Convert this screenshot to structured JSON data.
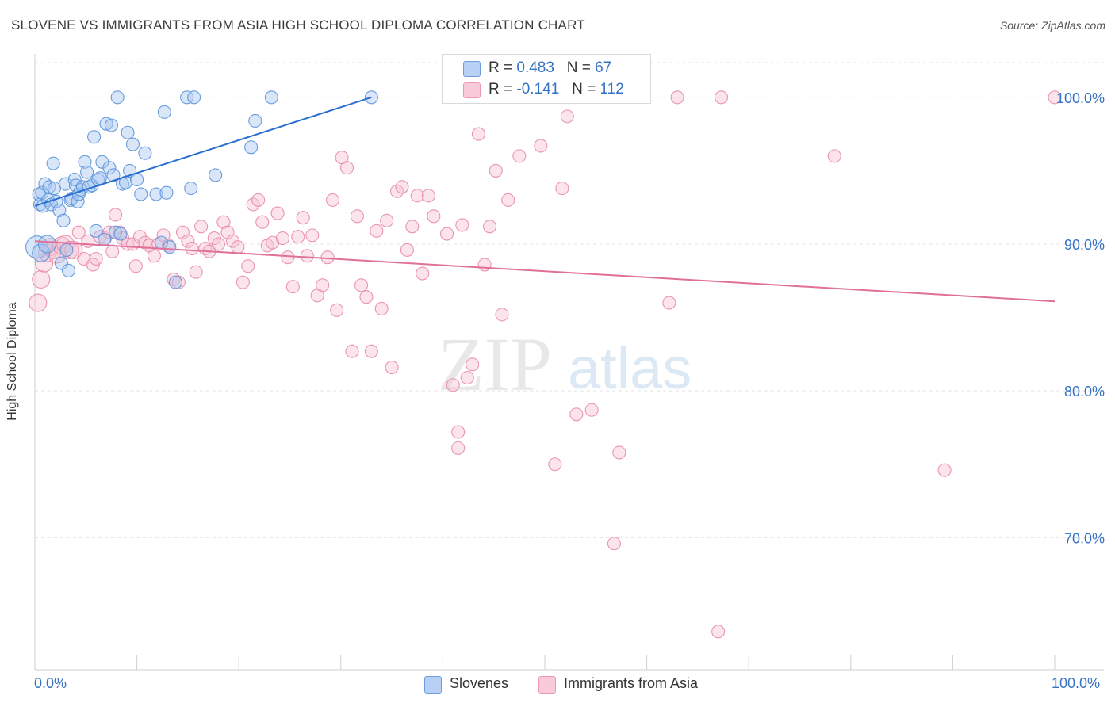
{
  "title": "SLOVENE VS IMMIGRANTS FROM ASIA HIGH SCHOOL DIPLOMA CORRELATION CHART",
  "source": "Source: ZipAtlas.com",
  "watermark": {
    "zip": "ZIP",
    "atlas": "atlas"
  },
  "colors": {
    "slovenes_fill": "#a9c7f0",
    "slovenes_stroke": "#5b92dc",
    "slovenes_line": "#2a6fd1",
    "asia_fill": "#f7c3d3",
    "asia_stroke": "#e98aaa",
    "asia_line": "#e0709a",
    "tick_text": "#3572c6",
    "grid": "#e3e3e3"
  },
  "legend": {
    "r_label": "R =",
    "n_label": "N =",
    "rows": [
      {
        "r": "0.483",
        "n": "67"
      },
      {
        "r": "-0.141",
        "n": "112"
      }
    ]
  },
  "bottom_legend": [
    "Slovenes",
    "Immigrants from Asia"
  ],
  "chart_data": {
    "type": "scatter",
    "title": "SLOVENE VS IMMIGRANTS FROM ASIA HIGH SCHOOL DIPLOMA CORRELATION CHART",
    "xlabel": "",
    "ylabel": "High School Diploma",
    "xlim": [
      0,
      100
    ],
    "ylim": [
      61,
      103.5
    ],
    "x_tick_labels": [
      "0.0%",
      "100.0%"
    ],
    "y_ticks": [
      {
        "value": 100,
        "label": "100.0%"
      },
      {
        "value": 90,
        "label": "90.0%"
      },
      {
        "value": 80,
        "label": "80.0%"
      },
      {
        "value": 70,
        "label": "70.0%"
      }
    ],
    "grid": true,
    "legend_position": "top-center",
    "series": [
      {
        "name": "Slovenes",
        "r": 0.483,
        "n": 67,
        "trend": {
          "x": [
            0.0,
            33.0
          ],
          "y": [
            92.6,
            100.0
          ]
        },
        "points": [
          [
            0.2,
            89.8,
            3
          ],
          [
            0.4,
            93.4,
            1
          ],
          [
            0.5,
            92.7,
            1
          ],
          [
            0.7,
            93.5,
            1
          ],
          [
            0.8,
            92.6,
            1
          ],
          [
            1.0,
            94.1,
            1
          ],
          [
            1.3,
            93.0,
            1
          ],
          [
            1.4,
            93.9,
            1
          ],
          [
            1.6,
            92.7,
            1
          ],
          [
            1.8,
            95.5,
            1
          ],
          [
            1.9,
            93.8,
            1
          ],
          [
            2.1,
            92.9,
            1
          ],
          [
            2.4,
            92.3,
            1
          ],
          [
            2.6,
            88.7,
            1
          ],
          [
            2.8,
            91.6,
            1
          ],
          [
            3.0,
            94.1,
            1
          ],
          [
            3.1,
            89.6,
            1
          ],
          [
            3.3,
            88.2,
            1
          ],
          [
            3.5,
            93.0,
            1
          ],
          [
            3.6,
            93.1,
            1
          ],
          [
            3.9,
            94.4,
            1
          ],
          [
            4.0,
            94.0,
            1
          ],
          [
            4.2,
            92.9,
            1
          ],
          [
            4.3,
            93.4,
            1
          ],
          [
            4.5,
            93.7,
            1
          ],
          [
            4.7,
            93.9,
            1
          ],
          [
            4.9,
            95.6,
            1
          ],
          [
            5.1,
            94.9,
            1
          ],
          [
            5.3,
            93.9,
            1
          ],
          [
            5.6,
            94.0,
            1
          ],
          [
            5.8,
            97.3,
            1
          ],
          [
            6.0,
            90.9,
            1
          ],
          [
            6.2,
            94.4,
            1
          ],
          [
            6.4,
            94.5,
            1
          ],
          [
            6.6,
            95.6,
            1
          ],
          [
            6.8,
            90.3,
            1
          ],
          [
            7.0,
            98.2,
            1
          ],
          [
            7.3,
            95.2,
            1
          ],
          [
            7.5,
            98.1,
            1
          ],
          [
            7.7,
            94.7,
            1
          ],
          [
            7.9,
            90.8,
            1
          ],
          [
            8.1,
            100.0,
            1
          ],
          [
            8.4,
            90.7,
            1
          ],
          [
            8.6,
            94.1,
            1
          ],
          [
            8.9,
            94.2,
            1
          ],
          [
            9.1,
            97.6,
            1
          ],
          [
            9.3,
            95.0,
            1
          ],
          [
            9.6,
            96.8,
            1
          ],
          [
            10.0,
            94.4,
            1
          ],
          [
            10.4,
            93.4,
            1
          ],
          [
            10.8,
            96.2,
            1
          ],
          [
            11.9,
            93.4,
            1
          ],
          [
            12.4,
            90.1,
            1
          ],
          [
            12.7,
            99.0,
            1
          ],
          [
            12.9,
            93.5,
            1
          ],
          [
            13.2,
            89.8,
            1
          ],
          [
            13.8,
            87.4,
            1
          ],
          [
            14.9,
            100.0,
            1
          ],
          [
            15.3,
            93.8,
            1
          ],
          [
            15.6,
            100.0,
            1
          ],
          [
            17.7,
            94.7,
            1
          ],
          [
            21.2,
            96.6,
            1
          ],
          [
            21.6,
            98.4,
            1
          ],
          [
            23.2,
            100.0,
            1
          ],
          [
            33.0,
            100.0,
            1
          ],
          [
            0.6,
            89.4,
            2
          ],
          [
            1.2,
            90.0,
            2
          ]
        ]
      },
      {
        "name": "Immigrants from Asia",
        "r": -0.141,
        "n": 112,
        "trend": {
          "x": [
            0.0,
            100.0
          ],
          "y": [
            90.2,
            86.1
          ]
        },
        "points": [
          [
            0.3,
            86.0,
            2
          ],
          [
            0.6,
            87.6,
            2
          ],
          [
            0.9,
            88.7,
            2
          ],
          [
            1.2,
            89.4,
            2
          ],
          [
            1.5,
            89.8,
            2
          ],
          [
            1.8,
            89.6,
            2
          ],
          [
            2.2,
            89.3,
            2
          ],
          [
            2.6,
            89.9,
            2
          ],
          [
            3.0,
            90.0,
            2
          ],
          [
            3.4,
            89.6,
            2
          ],
          [
            3.8,
            89.6,
            2
          ],
          [
            4.3,
            90.8,
            1
          ],
          [
            4.8,
            89.0,
            1
          ],
          [
            5.2,
            90.2,
            1
          ],
          [
            5.7,
            88.6,
            1
          ],
          [
            6.0,
            89.0,
            1
          ],
          [
            6.4,
            90.5,
            1
          ],
          [
            6.9,
            90.4,
            1
          ],
          [
            7.3,
            90.8,
            1
          ],
          [
            7.6,
            89.5,
            1
          ],
          [
            7.9,
            92.0,
            1
          ],
          [
            8.3,
            90.8,
            1
          ],
          [
            8.6,
            90.4,
            1
          ],
          [
            9.1,
            90.0,
            1
          ],
          [
            9.6,
            90.0,
            1
          ],
          [
            9.9,
            88.5,
            1
          ],
          [
            10.3,
            90.5,
            1
          ],
          [
            10.8,
            90.1,
            1
          ],
          [
            11.2,
            89.9,
            1
          ],
          [
            11.7,
            89.2,
            1
          ],
          [
            12.1,
            90.0,
            1
          ],
          [
            12.6,
            90.6,
            1
          ],
          [
            13.1,
            89.9,
            1
          ],
          [
            13.6,
            87.6,
            1
          ],
          [
            14.1,
            87.4,
            1
          ],
          [
            14.5,
            90.8,
            1
          ],
          [
            15.0,
            90.2,
            1
          ],
          [
            15.4,
            89.7,
            1
          ],
          [
            15.8,
            88.1,
            1
          ],
          [
            16.3,
            91.2,
            1
          ],
          [
            16.7,
            89.7,
            1
          ],
          [
            17.1,
            89.5,
            1
          ],
          [
            17.6,
            90.4,
            1
          ],
          [
            18.0,
            90.0,
            1
          ],
          [
            18.5,
            91.5,
            1
          ],
          [
            18.9,
            90.8,
            1
          ],
          [
            19.4,
            90.2,
            1
          ],
          [
            19.9,
            89.8,
            1
          ],
          [
            20.4,
            87.4,
            1
          ],
          [
            20.9,
            88.5,
            1
          ],
          [
            21.4,
            92.7,
            1
          ],
          [
            21.9,
            93.0,
            1
          ],
          [
            22.3,
            91.5,
            1
          ],
          [
            22.8,
            89.9,
            1
          ],
          [
            23.3,
            90.1,
            1
          ],
          [
            23.8,
            92.1,
            1
          ],
          [
            24.3,
            90.4,
            1
          ],
          [
            24.8,
            89.1,
            1
          ],
          [
            25.3,
            87.1,
            1
          ],
          [
            25.8,
            90.5,
            1
          ],
          [
            26.3,
            91.8,
            1
          ],
          [
            26.7,
            89.2,
            1
          ],
          [
            27.2,
            90.6,
            1
          ],
          [
            27.7,
            86.5,
            1
          ],
          [
            28.2,
            87.2,
            1
          ],
          [
            28.7,
            89.1,
            1
          ],
          [
            29.2,
            93.0,
            1
          ],
          [
            29.6,
            85.5,
            1
          ],
          [
            30.1,
            95.9,
            1
          ],
          [
            30.6,
            95.2,
            1
          ],
          [
            31.1,
            82.7,
            1
          ],
          [
            31.6,
            91.9,
            1
          ],
          [
            32.0,
            87.2,
            1
          ],
          [
            32.5,
            86.4,
            1
          ],
          [
            33.0,
            82.7,
            1
          ],
          [
            33.5,
            90.9,
            1
          ],
          [
            34.0,
            85.6,
            1
          ],
          [
            34.5,
            91.6,
            1
          ],
          [
            35.0,
            81.6,
            1
          ],
          [
            35.5,
            93.6,
            1
          ],
          [
            36.0,
            93.9,
            1
          ],
          [
            36.5,
            89.6,
            1
          ],
          [
            37.0,
            91.2,
            1
          ],
          [
            37.5,
            93.3,
            1
          ],
          [
            38.0,
            88.0,
            1
          ],
          [
            38.6,
            93.3,
            1
          ],
          [
            39.1,
            91.9,
            1
          ],
          [
            40.4,
            90.7,
            1
          ],
          [
            41.0,
            80.4,
            1
          ],
          [
            41.5,
            77.2,
            1
          ],
          [
            41.9,
            91.3,
            1
          ],
          [
            42.4,
            80.9,
            1
          ],
          [
            42.9,
            81.8,
            1
          ],
          [
            43.5,
            97.5,
            1
          ],
          [
            44.1,
            88.6,
            1
          ],
          [
            44.6,
            91.2,
            1
          ],
          [
            45.2,
            95.0,
            1
          ],
          [
            45.8,
            85.2,
            1
          ],
          [
            46.4,
            93.0,
            1
          ],
          [
            47.5,
            96.0,
            1
          ],
          [
            49.6,
            96.7,
            1
          ],
          [
            51.0,
            75.0,
            1
          ],
          [
            51.7,
            93.8,
            1
          ],
          [
            52.2,
            98.7,
            1
          ],
          [
            53.1,
            78.4,
            1
          ],
          [
            54.6,
            78.7,
            1
          ],
          [
            56.8,
            69.6,
            1
          ],
          [
            57.3,
            75.8,
            1
          ],
          [
            62.2,
            86.0,
            1
          ],
          [
            63.0,
            100.0,
            1
          ],
          [
            67.0,
            63.6,
            1
          ],
          [
            67.3,
            100.0,
            1
          ],
          [
            78.4,
            96.0,
            1
          ],
          [
            89.2,
            74.6,
            1
          ],
          [
            100.0,
            100.0,
            1
          ],
          [
            41.5,
            76.1,
            1
          ]
        ]
      }
    ]
  }
}
